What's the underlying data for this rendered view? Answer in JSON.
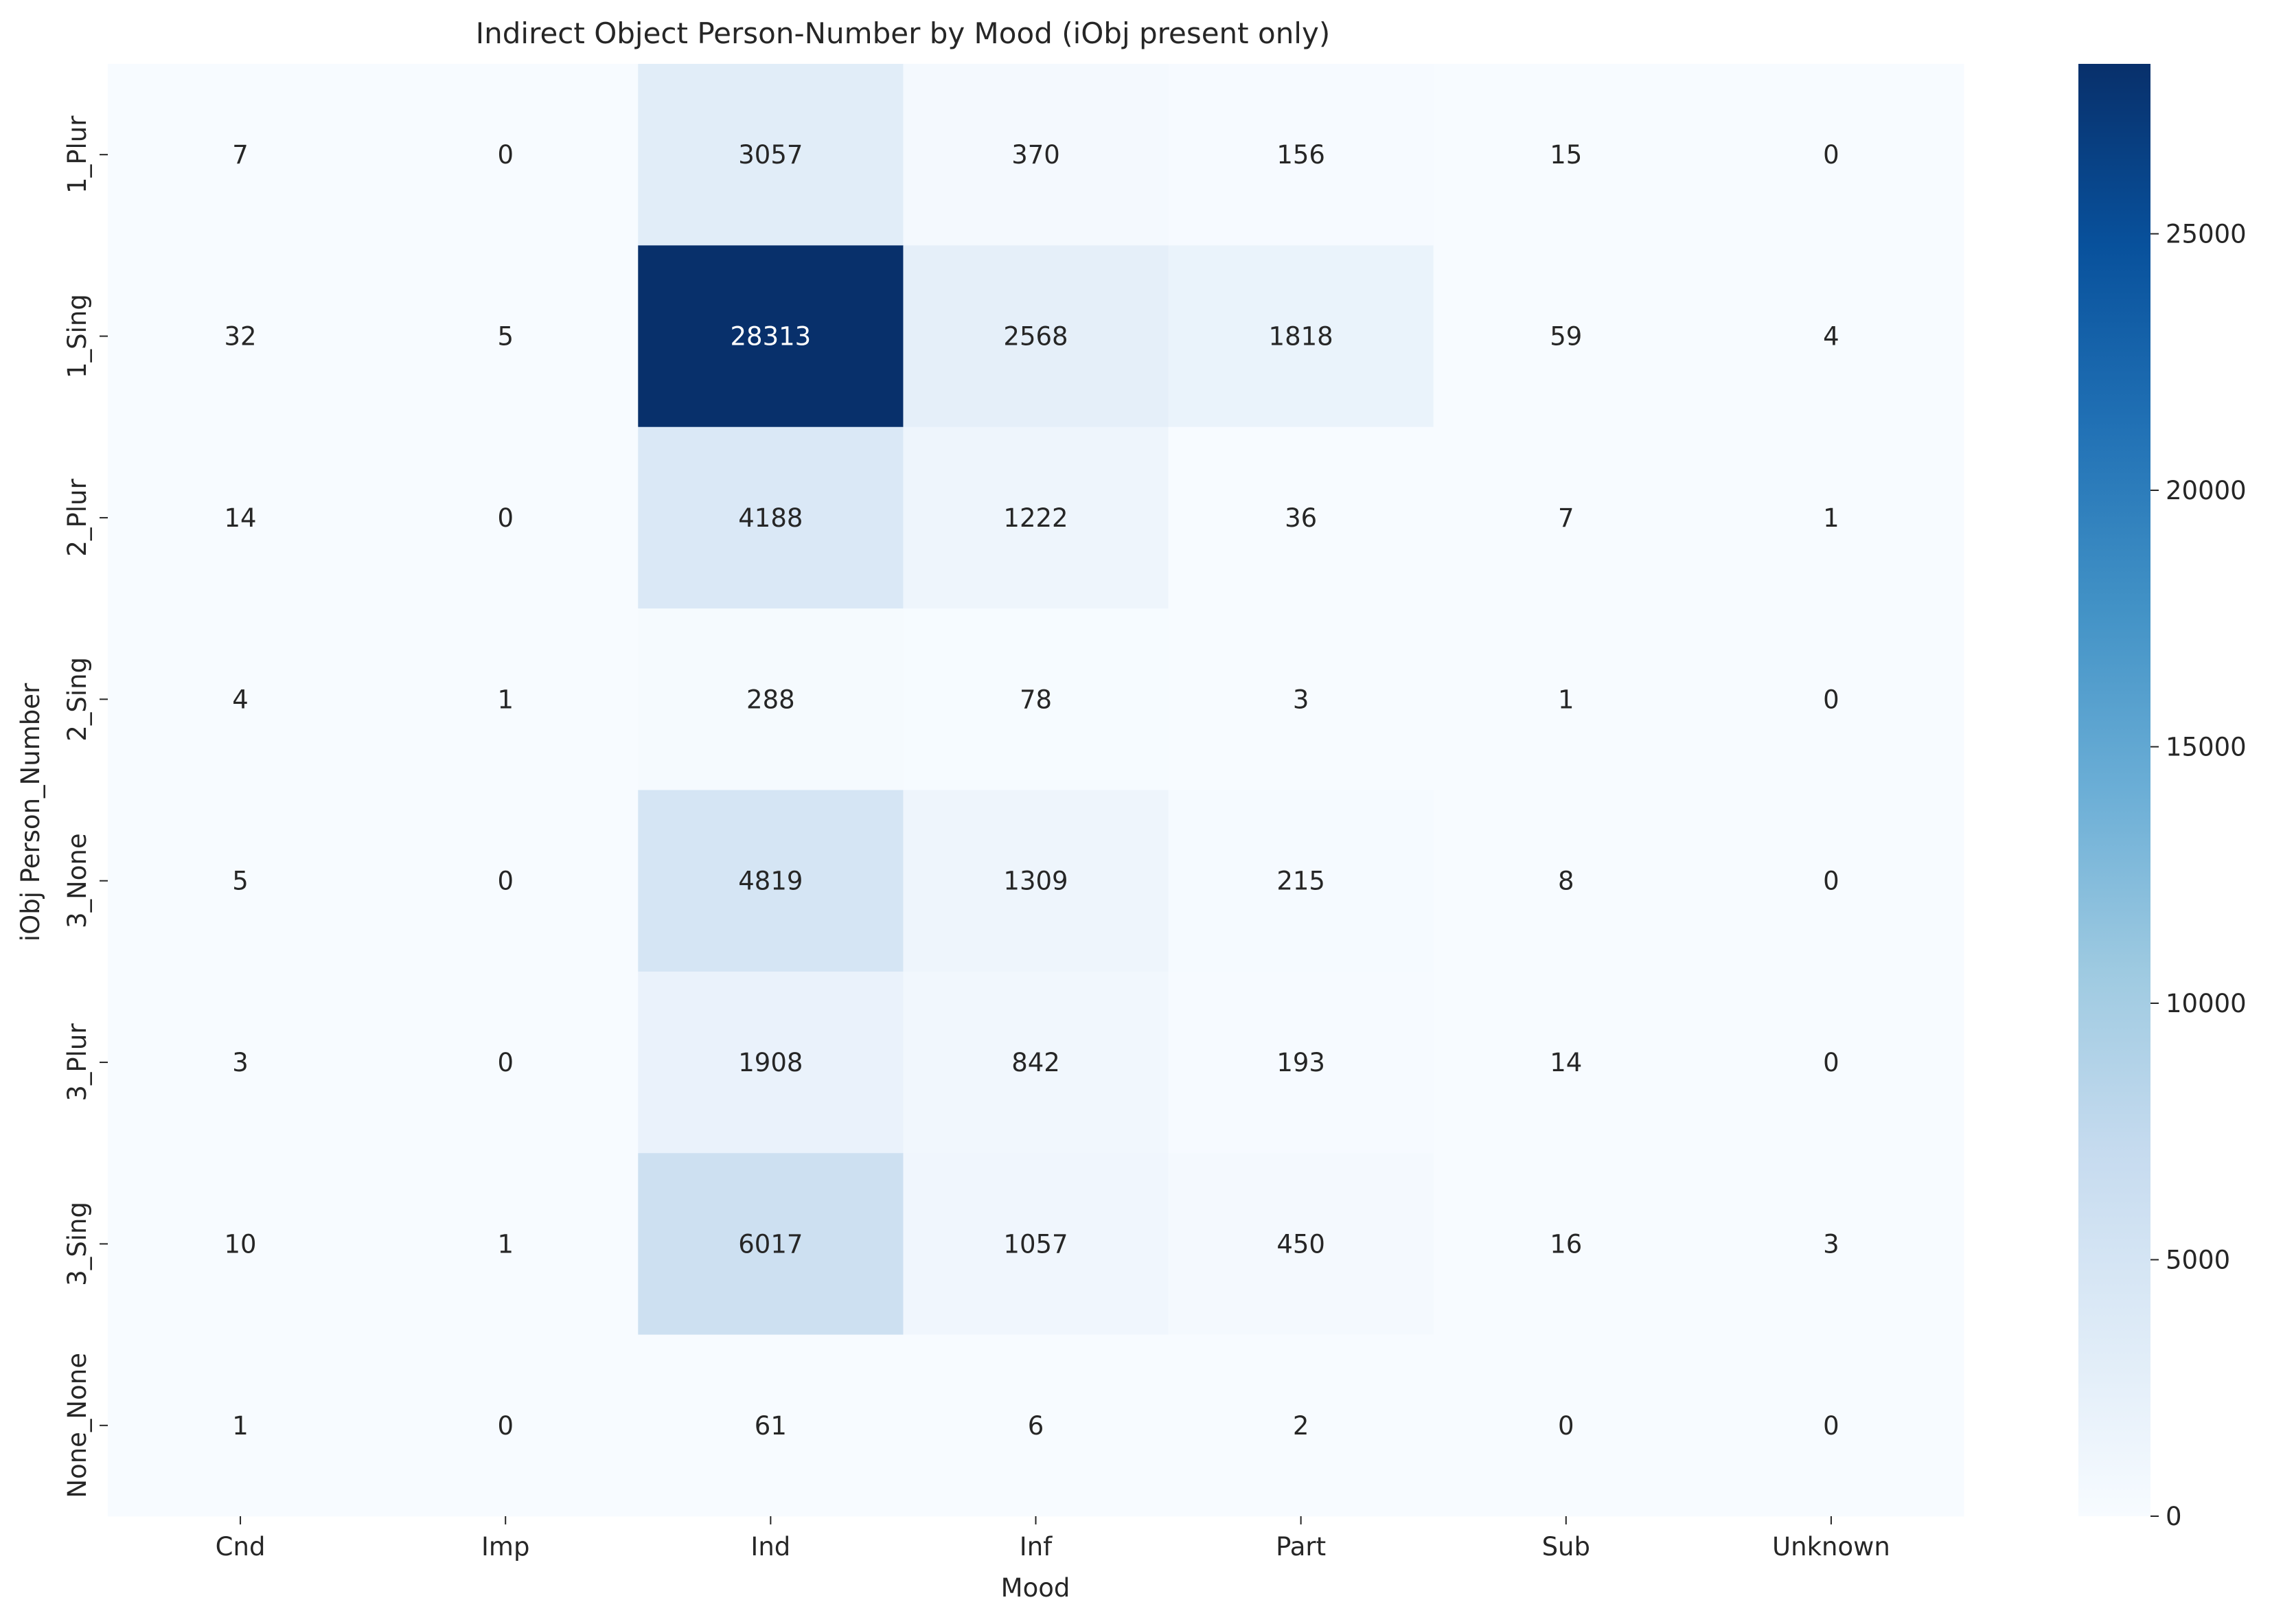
{
  "chart_data": {
    "type": "heatmap",
    "title": "Indirect Object Person-Number by Mood (iObj present only)",
    "xlabel": "Mood",
    "ylabel": "iObj Person_Number",
    "x_categories": [
      "Cnd",
      "Imp",
      "Ind",
      "Inf",
      "Part",
      "Sub",
      "Unknown"
    ],
    "y_categories": [
      "1_Plur",
      "1_Sing",
      "2_Plur",
      "2_Sing",
      "3_None",
      "3_Plur",
      "3_Sing",
      "None_None"
    ],
    "values": [
      [
        7,
        0,
        3057,
        370,
        156,
        15,
        0
      ],
      [
        32,
        5,
        28313,
        2568,
        1818,
        59,
        4
      ],
      [
        14,
        0,
        4188,
        1222,
        36,
        7,
        1
      ],
      [
        4,
        1,
        288,
        78,
        3,
        1,
        0
      ],
      [
        5,
        0,
        4819,
        1309,
        215,
        8,
        0
      ],
      [
        3,
        0,
        1908,
        842,
        193,
        14,
        0
      ],
      [
        10,
        1,
        6017,
        1057,
        450,
        16,
        3
      ],
      [
        1,
        0,
        61,
        6,
        2,
        0,
        0
      ]
    ],
    "colormap": "Blues",
    "colorbar": {
      "range": [
        0,
        28313
      ],
      "ticks": [
        0,
        5000,
        10000,
        15000,
        20000,
        25000
      ],
      "tick_labels": [
        "0",
        "5000",
        "10000",
        "15000",
        "20000",
        "25000"
      ]
    },
    "annotated": true,
    "grid": false
  }
}
